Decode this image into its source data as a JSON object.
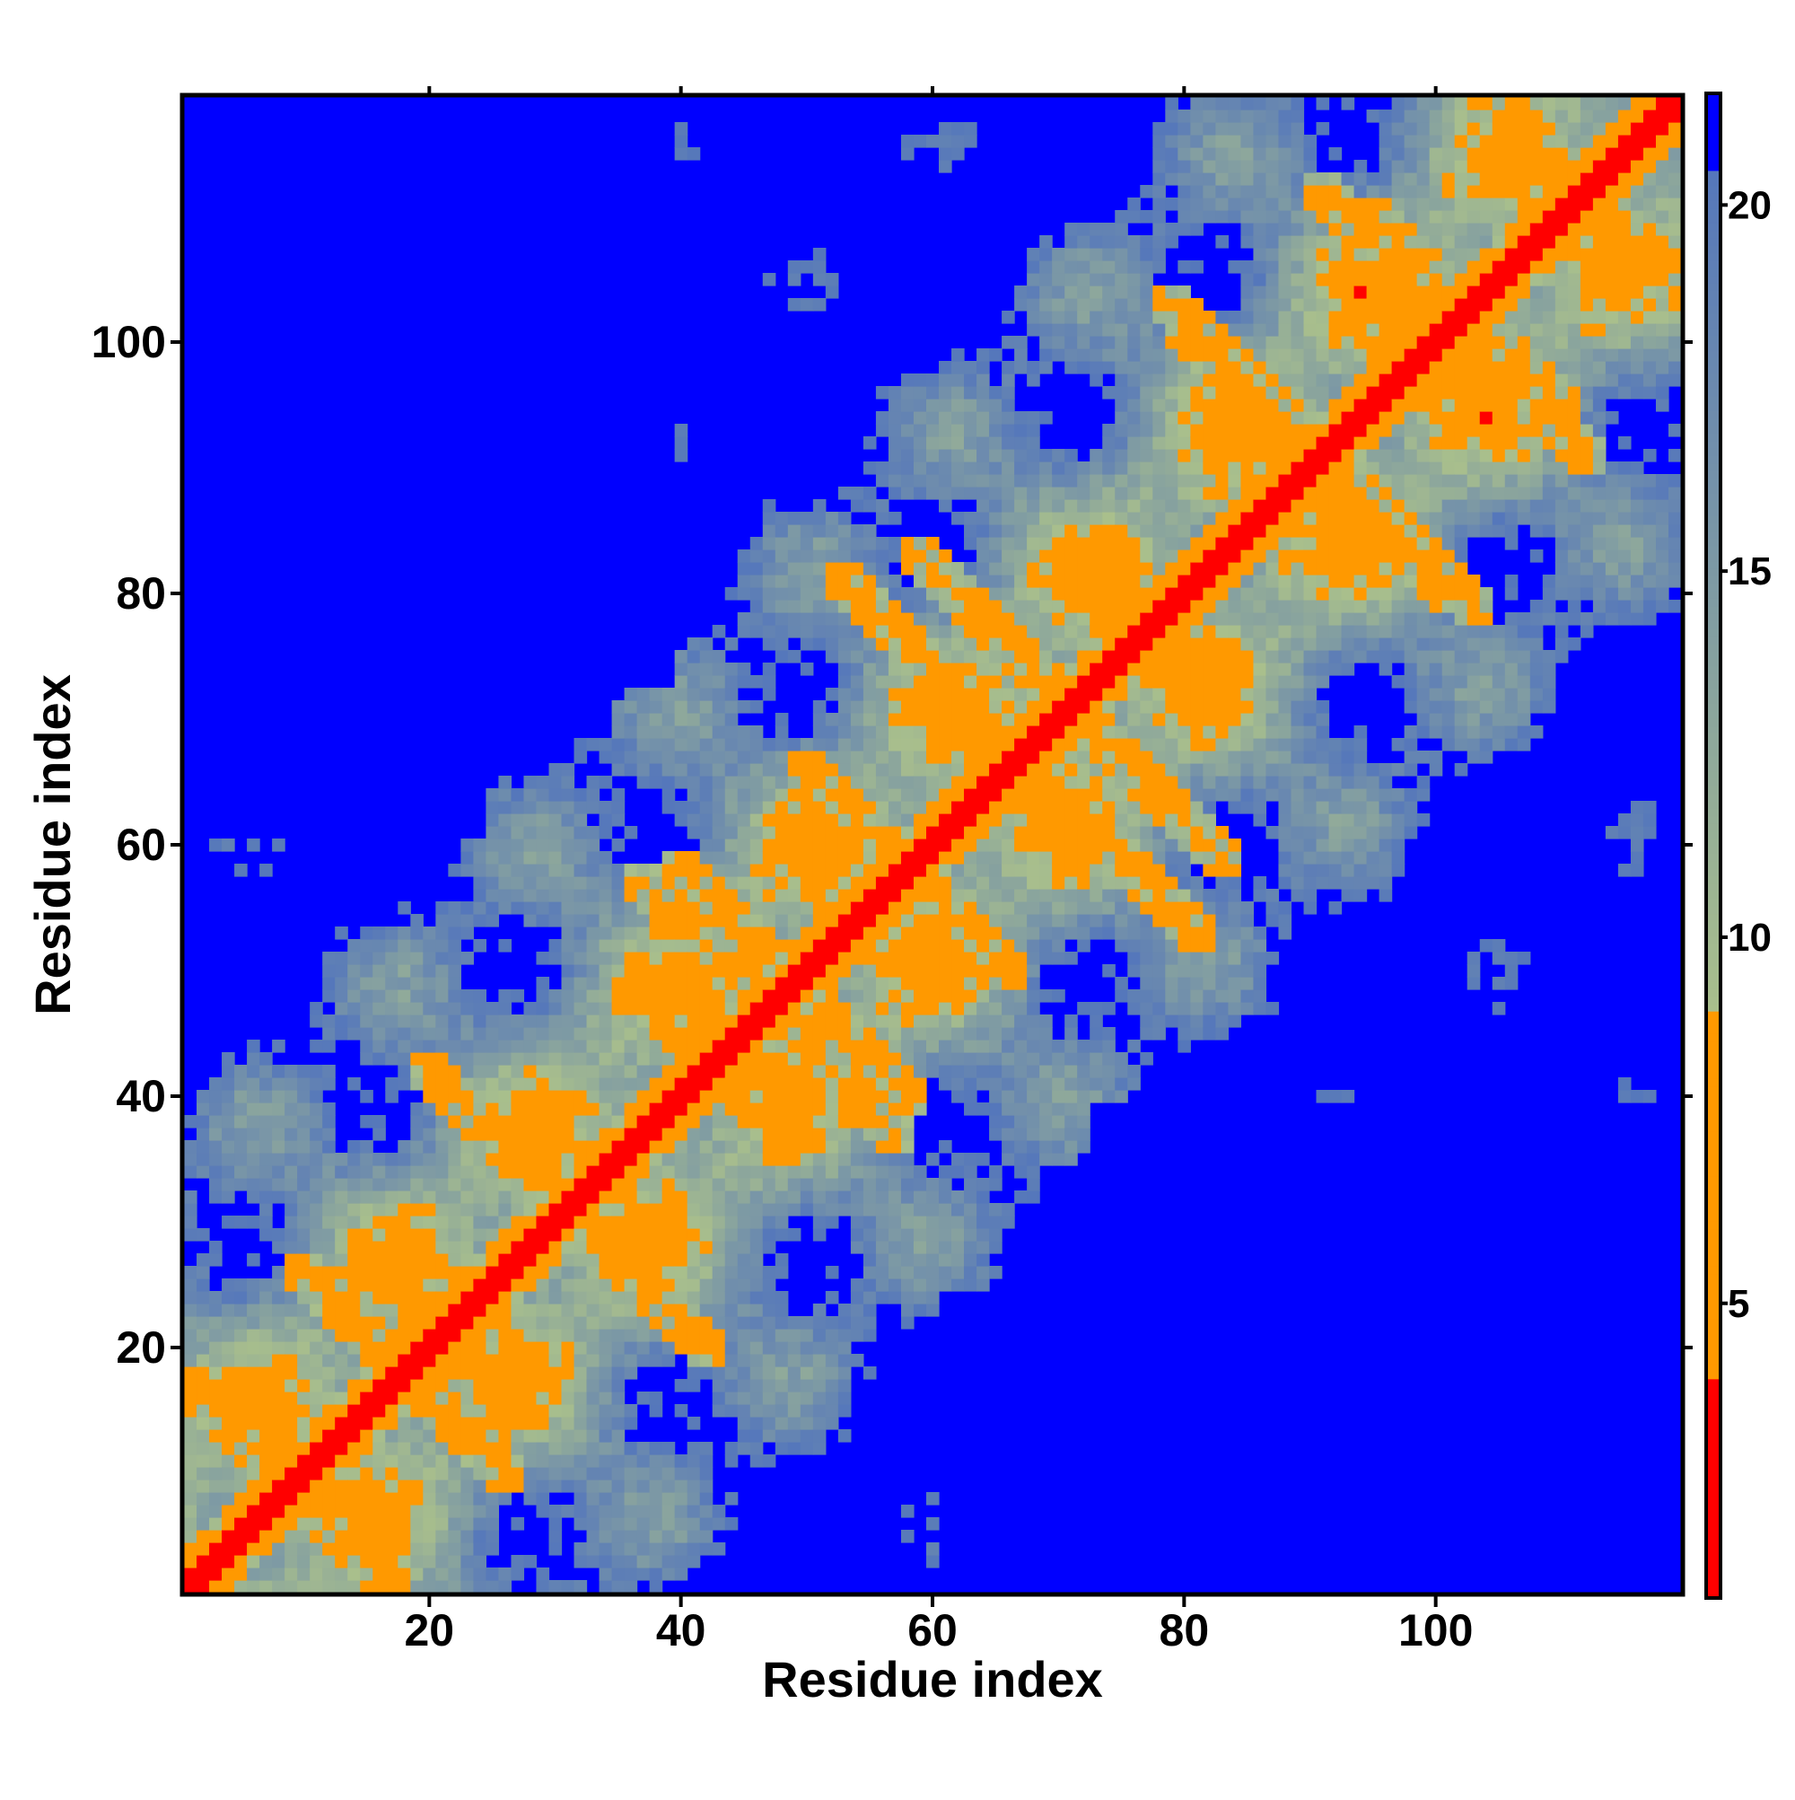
{
  "chart_data": {
    "type": "heatmap",
    "title": "",
    "xlabel": "Residue index",
    "ylabel": "Residue index",
    "n_residues": 119,
    "xlim": [
      1,
      119
    ],
    "ylim": [
      1,
      119
    ],
    "x_ticks": [
      20,
      40,
      60,
      80,
      100
    ],
    "y_ticks": [
      20,
      40,
      60,
      80,
      100
    ],
    "colorbar": {
      "range": [
        1,
        21.5
      ],
      "ticks": [
        5,
        10,
        15,
        20
      ],
      "colors": {
        "contact": "#ff0000",
        "near": "#ff9900",
        "mid": "#a9bf8c",
        "far": "#5b82b8",
        "max": "#0000ff"
      },
      "stops": [
        {
          "value": 1,
          "color": "#ff0000"
        },
        {
          "value": 5.5,
          "color": "#ff8c00"
        },
        {
          "value": 8.8,
          "color": "#ffa500"
        },
        {
          "value": 9.0,
          "color": "#a9bf8c"
        },
        {
          "value": 13.0,
          "color": "#9fb79a"
        },
        {
          "value": 17.0,
          "color": "#6f90b8"
        },
        {
          "value": 21.2,
          "color": "#5577bb"
        },
        {
          "value": 21.5,
          "color": "#0000ff"
        }
      ]
    },
    "secondary_structure_contacts": {
      "helix_centers": [
        12,
        33,
        50,
        62,
        76,
        94,
        108
      ],
      "off_diagonal_strands": [
        {
          "i_start": 1,
          "j_start": 17,
          "length": 10,
          "direction": "anti"
        },
        {
          "i_start": 10,
          "j_start": 26,
          "length": 12,
          "direction": "anti"
        },
        {
          "i_start": 17,
          "j_start": 30,
          "length": 12,
          "direction": "anti"
        },
        {
          "i_start": 20,
          "j_start": 42,
          "length": 14,
          "direction": "anti"
        },
        {
          "i_start": 40,
          "j_start": 58,
          "length": 10,
          "direction": "anti"
        },
        {
          "i_start": 50,
          "j_start": 66,
          "length": 8,
          "direction": "anti"
        },
        {
          "i_start": 50,
          "j_start": 44,
          "length": 8,
          "direction": "anti"
        },
        {
          "i_start": 59,
          "j_start": 83,
          "length": 14,
          "direction": "anti"
        },
        {
          "i_start": 68,
          "j_start": 66,
          "length": 14,
          "direction": "anti"
        },
        {
          "i_start": 80,
          "j_start": 101,
          "length": 12,
          "direction": "anti"
        },
        {
          "i_start": 92,
          "j_start": 90,
          "length": 12,
          "direction": "anti"
        },
        {
          "i_start": 95,
          "j_start": 110,
          "length": 10,
          "direction": "anti"
        },
        {
          "i_start": 103,
          "j_start": 100,
          "length": 10,
          "direction": "anti"
        },
        {
          "i_start": 104,
          "j_start": 119,
          "length": 8,
          "direction": "anti"
        },
        {
          "i_start": 110,
          "j_start": 112,
          "length": 8,
          "direction": "anti"
        }
      ]
    }
  }
}
